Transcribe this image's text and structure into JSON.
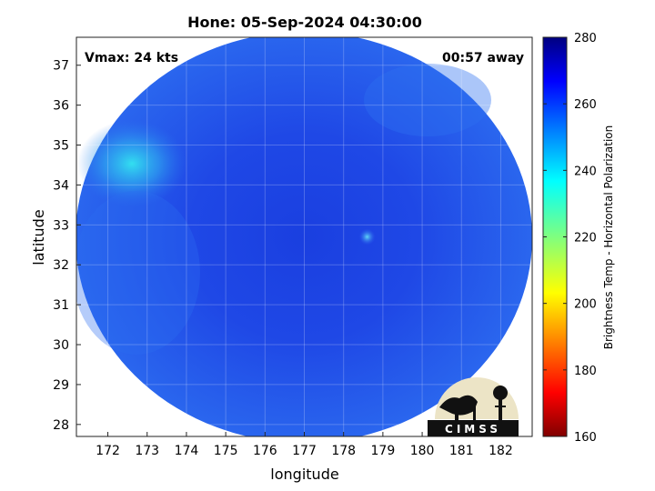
{
  "chart_data": {
    "type": "heatmap",
    "title": "Hone: 05-Sep-2024 04:30:00",
    "xlabel": "longitude",
    "ylabel": "latitude",
    "xlim": [
      171.2,
      182.8
    ],
    "ylim": [
      27.7,
      37.7
    ],
    "x_ticks": [
      172,
      173,
      174,
      175,
      176,
      177,
      178,
      179,
      180,
      181,
      182
    ],
    "y_ticks": [
      28,
      29,
      30,
      31,
      32,
      33,
      34,
      35,
      36,
      37
    ],
    "grid": true,
    "annotations": {
      "top_left": "Vmax: 24 kts",
      "top_right": "00:57 away"
    },
    "center": {
      "lon": 177.0,
      "lat": 32.7
    },
    "eye": {
      "lon": 178.6,
      "lat": 32.7
    },
    "colorbar": {
      "label": "Brightness Temp - Horizontal Polarization",
      "range": [
        160,
        280
      ],
      "ticks": [
        160,
        180,
        200,
        220,
        240,
        260,
        280
      ],
      "colormap": "jet",
      "placement": "right"
    },
    "logo_text": "CIMSS"
  }
}
